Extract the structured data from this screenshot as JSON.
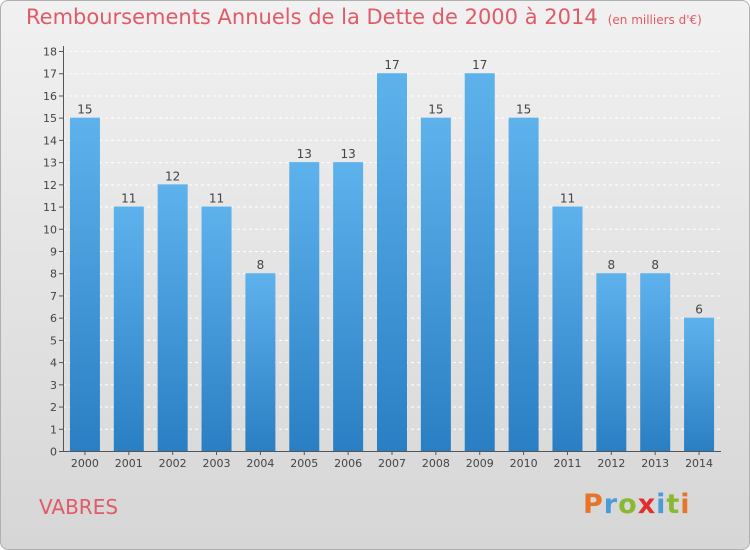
{
  "chart_data": {
    "type": "bar",
    "title": "Remboursements Annuels de la Dette de 2000 à 2014",
    "subtitle": "(en milliers d'€)",
    "categories": [
      "2000",
      "2001",
      "2002",
      "2003",
      "2004",
      "2005",
      "2006",
      "2007",
      "2008",
      "2009",
      "2010",
      "2011",
      "2012",
      "2013",
      "2014"
    ],
    "values": [
      15,
      11,
      12,
      11,
      8,
      13,
      13,
      17,
      15,
      17,
      15,
      11,
      8,
      8,
      6
    ],
    "xlabel": "",
    "ylabel": "",
    "ylim": [
      0,
      18
    ],
    "yticks": [
      0,
      1,
      2,
      3,
      4,
      5,
      6,
      7,
      8,
      9,
      10,
      11,
      12,
      13,
      14,
      15,
      16,
      17,
      18
    ],
    "grid": true,
    "bar_color": "#3a95db"
  },
  "footer": {
    "town": "VABRES",
    "brand": "Proxiti"
  },
  "colors": {
    "title": "#e05a67",
    "axis": "#555555",
    "brand_p": "#e8742a",
    "brand_r": "#4d9bd6",
    "brand_o": "#8ab833",
    "brand_x": "#e0302e"
  }
}
